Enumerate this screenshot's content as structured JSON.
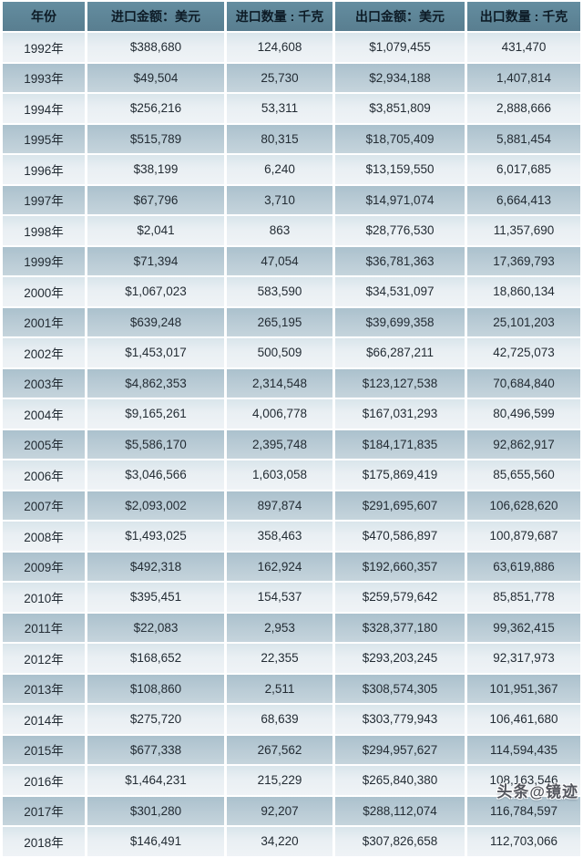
{
  "colors": {
    "header_bg": "#5e8496",
    "header_text": "#0d1b26",
    "row_light": "#e9eff3",
    "row_dark": "#b9cbd5",
    "cell_text": "#232c34",
    "separator": "#ffffff"
  },
  "watermark": {
    "text": "头条@镜迹"
  },
  "chart_data": {
    "type": "table",
    "title": "",
    "columns": [
      "年份",
      "进口金额：美元",
      "进口数量 : 千克",
      "出口金额：美元",
      "出口数量 : 千克"
    ],
    "rows": [
      [
        "1992年",
        "$388,680",
        "124,608",
        "$1,079,455",
        "431,470"
      ],
      [
        "1993年",
        "$49,504",
        "25,730",
        "$2,934,188",
        "1,407,814"
      ],
      [
        "1994年",
        "$256,216",
        "53,311",
        "$3,851,809",
        "2,888,666"
      ],
      [
        "1995年",
        "$515,789",
        "80,315",
        "$18,705,409",
        "5,881,454"
      ],
      [
        "1996年",
        "$38,199",
        "6,240",
        "$13,159,550",
        "6,017,685"
      ],
      [
        "1997年",
        "$67,796",
        "3,710",
        "$14,971,074",
        "6,664,413"
      ],
      [
        "1998年",
        "$2,041",
        "863",
        "$28,776,530",
        "11,357,690"
      ],
      [
        "1999年",
        "$71,394",
        "47,054",
        "$36,781,363",
        "17,369,793"
      ],
      [
        "2000年",
        "$1,067,023",
        "583,590",
        "$34,531,097",
        "18,860,134"
      ],
      [
        "2001年",
        "$639,248",
        "265,195",
        "$39,699,358",
        "25,101,203"
      ],
      [
        "2002年",
        "$1,453,017",
        "500,509",
        "$66,287,211",
        "42,725,073"
      ],
      [
        "2003年",
        "$4,862,353",
        "2,314,548",
        "$123,127,538",
        "70,684,840"
      ],
      [
        "2004年",
        "$9,165,261",
        "4,006,778",
        "$167,031,293",
        "80,496,599"
      ],
      [
        "2005年",
        "$5,586,170",
        "2,395,748",
        "$184,171,835",
        "92,862,917"
      ],
      [
        "2006年",
        "$3,046,566",
        "1,603,058",
        "$175,869,419",
        "85,655,560"
      ],
      [
        "2007年",
        "$2,093,002",
        "897,874",
        "$291,695,607",
        "106,628,620"
      ],
      [
        "2008年",
        "$1,493,025",
        "358,463",
        "$470,586,897",
        "100,879,687"
      ],
      [
        "2009年",
        "$492,318",
        "162,924",
        "$192,660,357",
        "63,619,886"
      ],
      [
        "2010年",
        "$395,451",
        "154,537",
        "$259,579,642",
        "85,851,778"
      ],
      [
        "2011年",
        "$22,083",
        "2,953",
        "$328,377,180",
        "99,362,415"
      ],
      [
        "2012年",
        "$168,652",
        "22,355",
        "$293,203,245",
        "92,317,973"
      ],
      [
        "2013年",
        "$108,860",
        "2,511",
        "$308,574,305",
        "101,951,367"
      ],
      [
        "2014年",
        "$275,720",
        "68,639",
        "$303,779,943",
        "106,461,680"
      ],
      [
        "2015年",
        "$677,338",
        "267,562",
        "$294,957,627",
        "114,594,435"
      ],
      [
        "2016年",
        "$1,464,231",
        "215,229",
        "$265,840,380",
        "108,163,546"
      ],
      [
        "2017年",
        "$301,280",
        "92,207",
        "$288,112,074",
        "116,784,597"
      ],
      [
        "2018年",
        "$146,491",
        "34,220",
        "$307,826,658",
        "112,703,066"
      ]
    ]
  }
}
